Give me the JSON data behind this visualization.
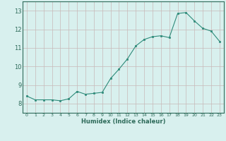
{
  "x": [
    0,
    1,
    2,
    3,
    4,
    5,
    6,
    7,
    8,
    9,
    10,
    11,
    12,
    13,
    14,
    15,
    16,
    17,
    18,
    19,
    20,
    21,
    22,
    23
  ],
  "y": [
    8.4,
    8.2,
    8.2,
    8.2,
    8.15,
    8.25,
    8.65,
    8.5,
    8.55,
    8.6,
    9.35,
    9.85,
    10.4,
    11.1,
    11.45,
    11.6,
    11.65,
    11.55,
    12.85,
    12.9,
    12.45,
    12.05,
    11.9,
    11.35
  ],
  "xlim": [
    -0.5,
    23.5
  ],
  "ylim": [
    7.5,
    13.5
  ],
  "yticks": [
    8,
    9,
    10,
    11,
    12,
    13
  ],
  "xticks": [
    0,
    1,
    2,
    3,
    4,
    5,
    6,
    7,
    8,
    9,
    10,
    11,
    12,
    13,
    14,
    15,
    16,
    17,
    18,
    19,
    20,
    21,
    22,
    23
  ],
  "xlabel": "Humidex (Indice chaleur)",
  "line_color": "#2e8b7a",
  "marker_color": "#2e8b7a",
  "bg_color": "#d8f0ee",
  "grid_color_major": "#c8b8b8"
}
